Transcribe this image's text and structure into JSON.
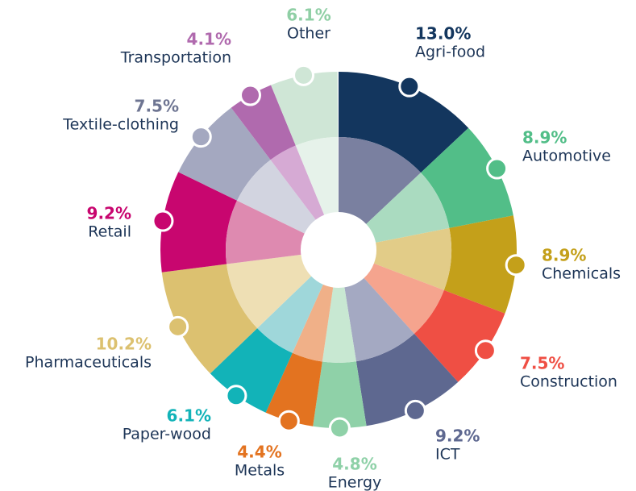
{
  "chart_data": {
    "type": "pie",
    "categories": [
      "Agri-food",
      "Automotive",
      "Chemicals",
      "Construction",
      "ICT",
      "Energy",
      "Metals",
      "Paper-wood",
      "Pharmaceuticals",
      "Retail",
      "Textile-clothing",
      "Transportation",
      "Other"
    ],
    "values": [
      13.0,
      8.9,
      8.9,
      7.5,
      9.2,
      4.8,
      4.4,
      6.1,
      10.2,
      9.2,
      7.5,
      4.1,
      6.1
    ],
    "value_labels": [
      "13.0%",
      "8.9%",
      "8.9%",
      "7.5%",
      "9.2%",
      "4.8%",
      "4.4%",
      "6.1%",
      "10.2%",
      "9.2%",
      "7.5%",
      "4.1%",
      "6.1%"
    ],
    "colors": [
      "#13365e",
      "#52be88",
      "#c4a01a",
      "#ef4f44",
      "#5e6890",
      "#8fd1a8",
      "#e37320",
      "#12b3b8",
      "#dcc170",
      "#c8066f",
      "#a4a8c0",
      "#b06aae",
      "#cfe6d6"
    ],
    "inner_colors": [
      "#7a80a0",
      "#aadbc0",
      "#e2cc88",
      "#f5a48e",
      "#a4a9c2",
      "#c8e8d2",
      "#f0b088",
      "#9fd7da",
      "#eedfb4",
      "#de8ab0",
      "#d2d4e0",
      "#d6aad4",
      "#e6f2ea"
    ],
    "label_colors": [
      "#13365e",
      "#52be88",
      "#c4a01a",
      "#ef4f44",
      "#5e6890",
      "#8fd1a8",
      "#e37320",
      "#12b3b8",
      "#dcc170",
      "#c8066f",
      "#6e7592",
      "#b06aae",
      "#8fcfa5"
    ]
  }
}
